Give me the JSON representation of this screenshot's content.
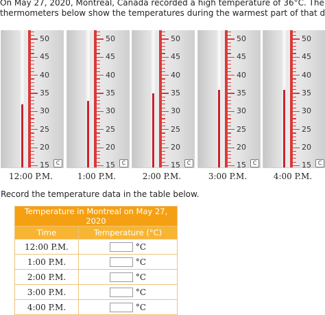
{
  "intro": {
    "line1": "On May 27, 2020, Montreal, Canada recorded a high temperature of 36°C. The",
    "line2": "thermometers below show the temperatures during the warmest part of that day."
  },
  "scale": {
    "labels": [
      "50",
      "45",
      "40",
      "35",
      "30",
      "25",
      "20",
      "15"
    ],
    "unit": "C",
    "colors": {
      "scale": "#d83a3a",
      "mercury": "#c8232c"
    }
  },
  "thermometers": [
    {
      "time": "12:00 P.M.",
      "reading_c": 32
    },
    {
      "time": "1:00 P.M.",
      "reading_c": 33
    },
    {
      "time": "2:00 P.M.",
      "reading_c": 35
    },
    {
      "time": "3:00 P.M.",
      "reading_c": 36
    },
    {
      "time": "4:00 P.M.",
      "reading_c": 36
    }
  ],
  "record_prompt": "Record the temperature data in the table below.",
  "table": {
    "caption": "Temperature in Montreal on May 27, 2020",
    "headers": [
      "Time",
      "Temperature (°C)"
    ],
    "unit_label": "°C",
    "rows": [
      {
        "time": "12:00 P.M.",
        "value": ""
      },
      {
        "time": "1:00 P.M.",
        "value": ""
      },
      {
        "time": "2:00 P.M.",
        "value": ""
      },
      {
        "time": "3:00 P.M.",
        "value": ""
      },
      {
        "time": "4:00 P.M.",
        "value": ""
      }
    ],
    "colors": {
      "caption_bg": "#f5a012",
      "header_bg": "#f7b533",
      "border": "#f0c27a"
    }
  }
}
